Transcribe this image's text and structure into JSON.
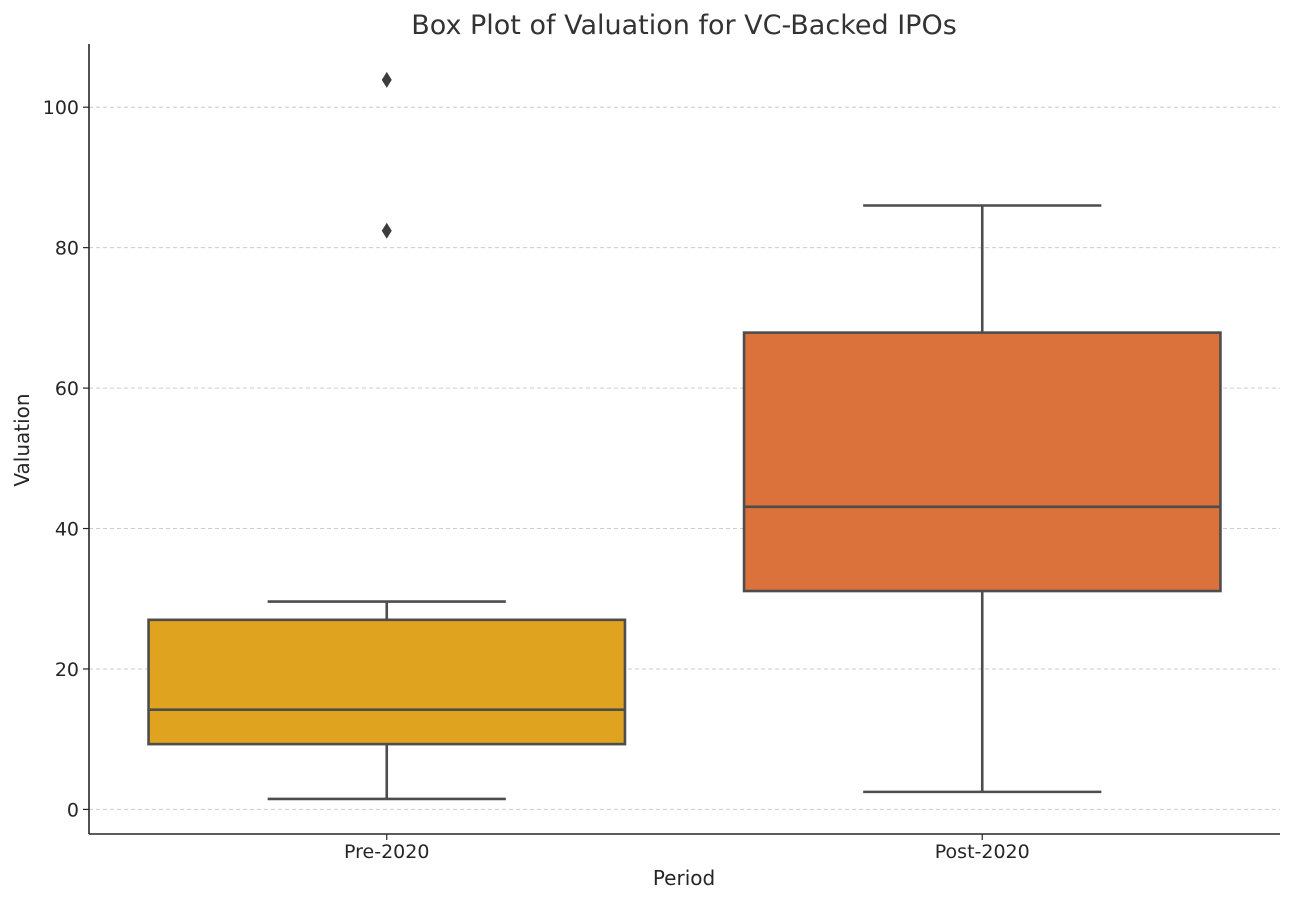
{
  "chart_data": {
    "type": "box",
    "title": "Box Plot of Valuation for VC-Backed IPOs",
    "xlabel": "Period",
    "ylabel": "Valuation",
    "ylim": [
      -3.5,
      109
    ],
    "yticks": [
      0,
      20,
      40,
      60,
      80,
      100
    ],
    "grid": "horizontal dashed",
    "categories": [
      "Pre-2020",
      "Post-2020"
    ],
    "boxes": [
      {
        "category": "Pre-2020",
        "whisker_low": 1.5,
        "q1": 9.3,
        "median": 14.2,
        "q3": 27.0,
        "whisker_high": 29.6,
        "outliers": [
          82.4,
          103.9
        ],
        "color": "#e0a320"
      },
      {
        "category": "Post-2020",
        "whisker_low": 2.5,
        "q1": 31.1,
        "median": 43.1,
        "q3": 67.9,
        "whisker_high": 86.0,
        "outliers": [],
        "color": "#db713b"
      }
    ]
  }
}
